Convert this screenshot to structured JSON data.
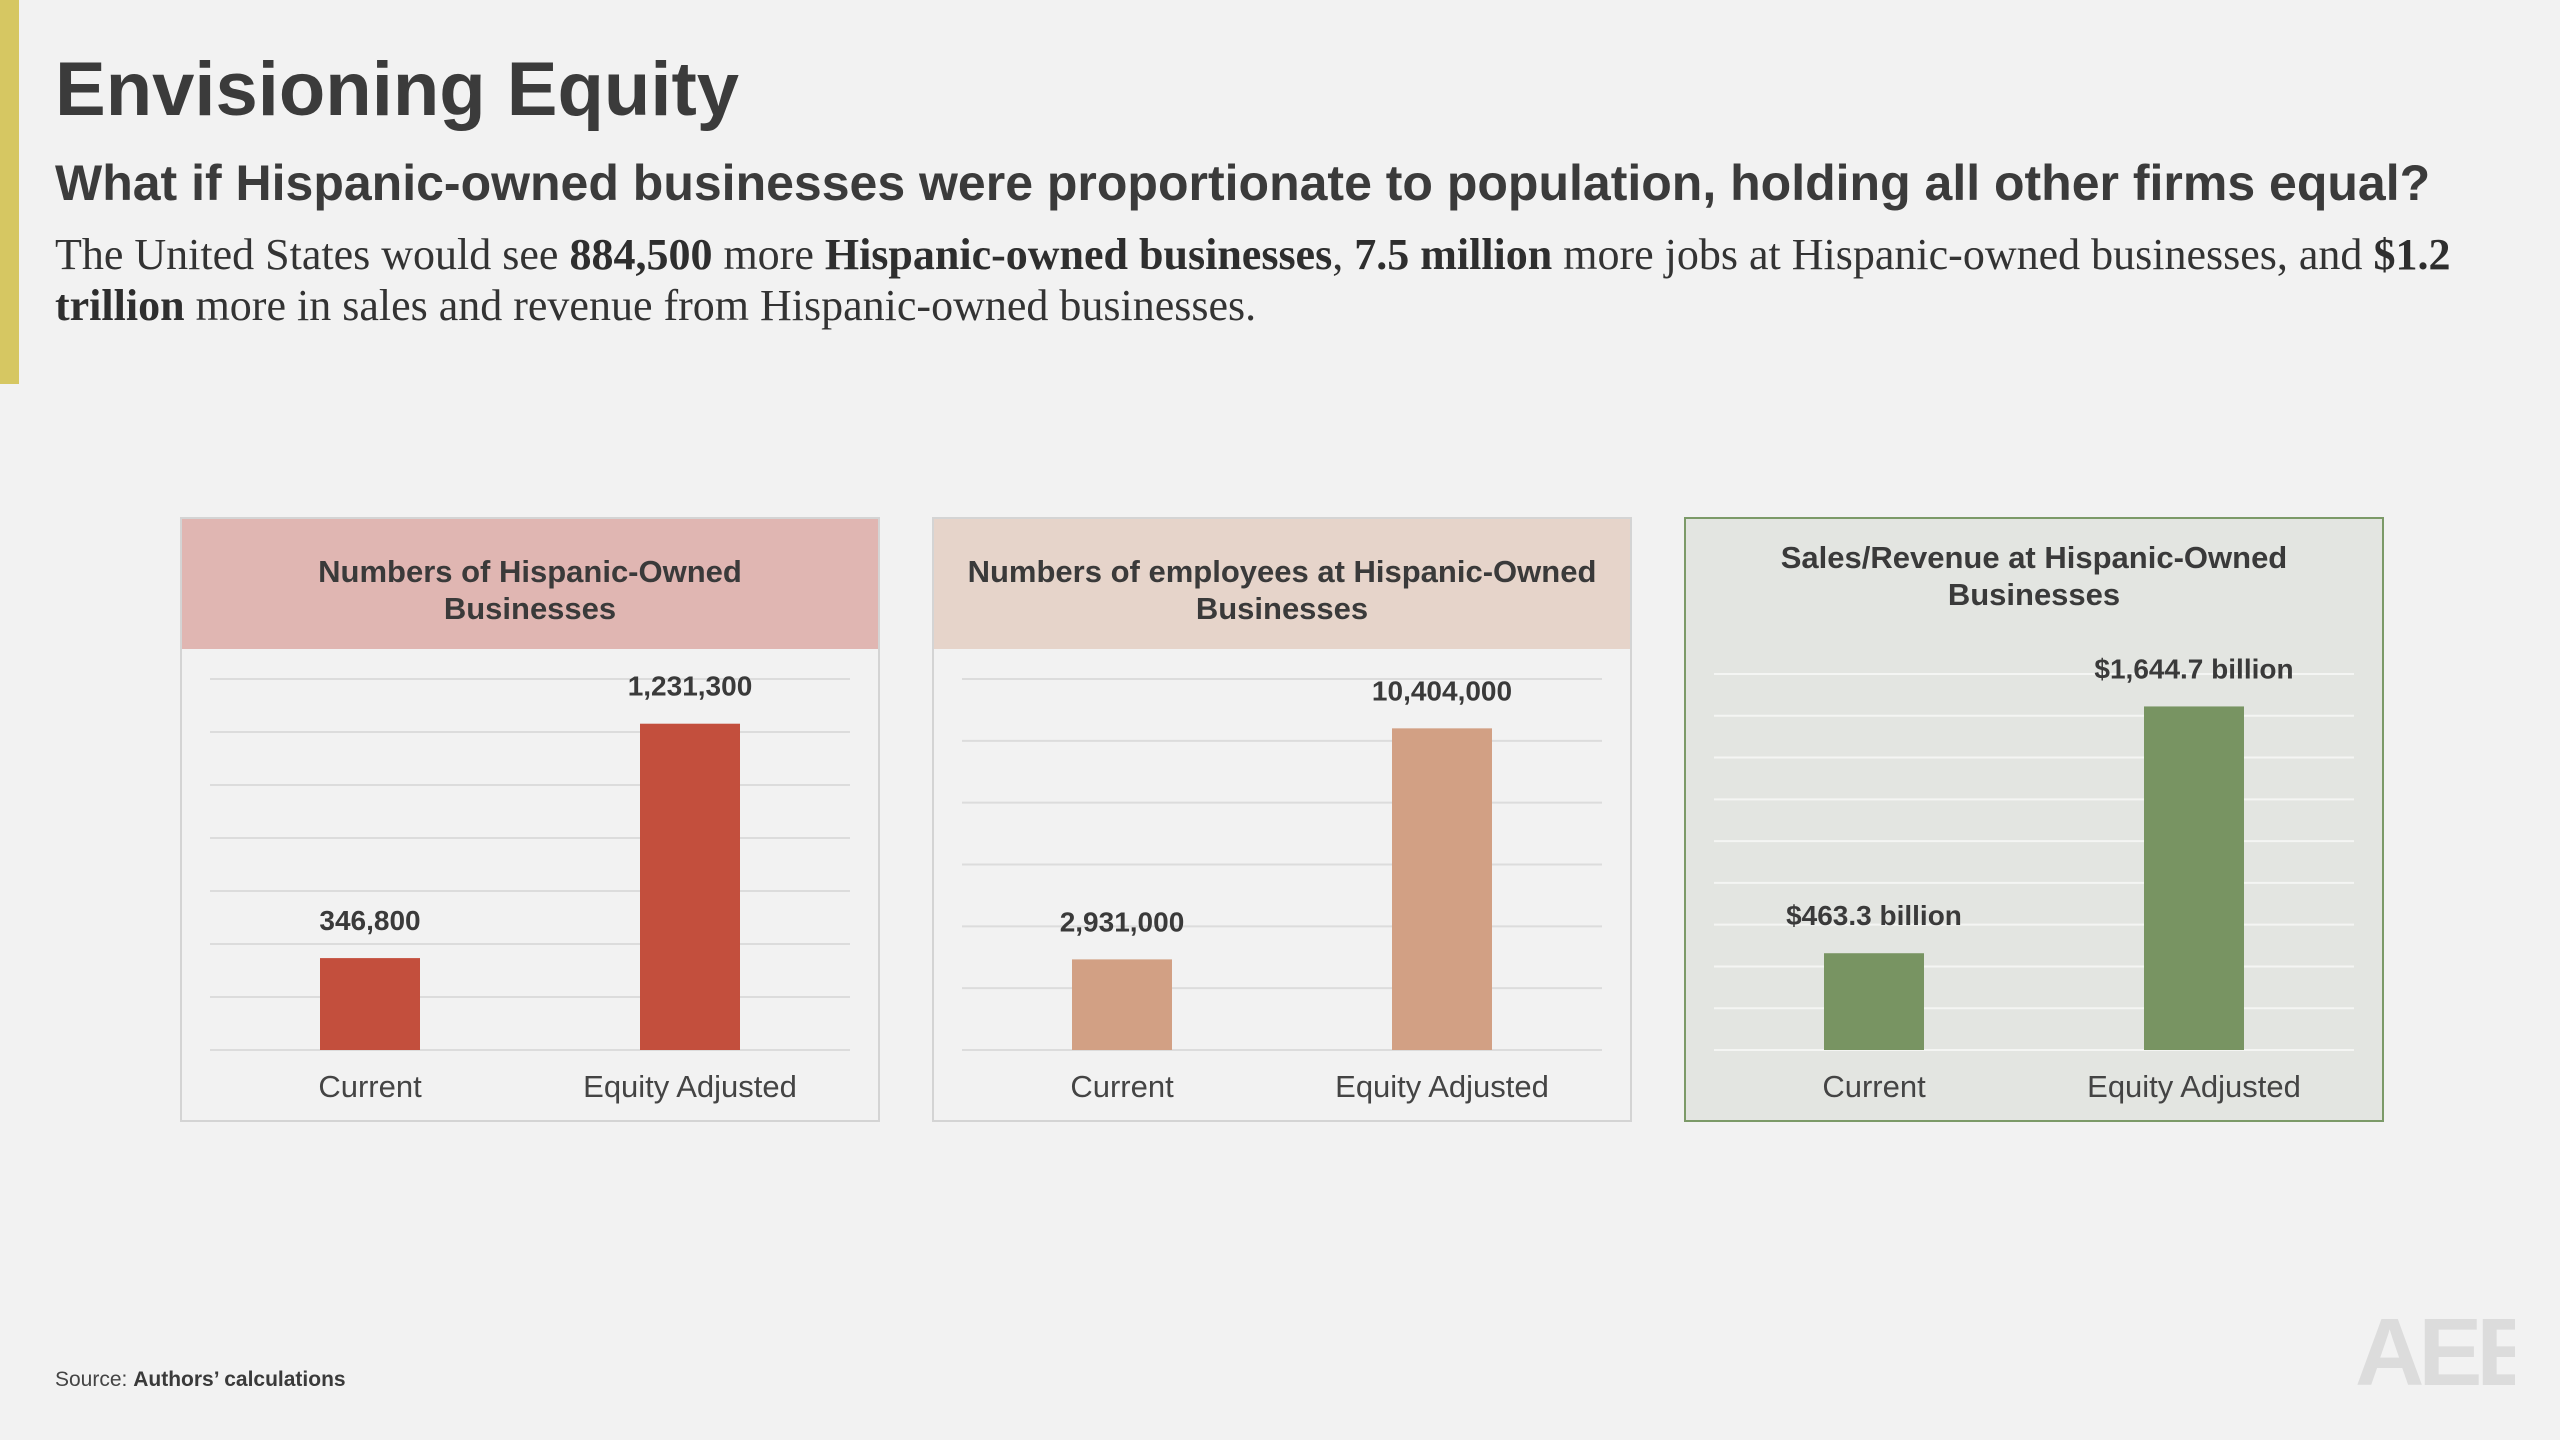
{
  "header": {
    "title": "Envisioning Equity",
    "subtitle": "What if Hispanic-owned businesses were proportionate to population, holding all other firms equal?",
    "intro": {
      "p1": "The United States would see ",
      "b1": "884,500",
      "p2": " more ",
      "b2": "Hispanic-owned businesses",
      "p3": ", ",
      "b3": "7.5 million",
      "p4": " more jobs at Hispanic-owned businesses, and ",
      "b4": "$1.2 trillion",
      "p5": " more in sales and revenue from Hispanic-owned businesses."
    }
  },
  "footer": {
    "source_label": "Source:",
    "source_value": "Authors’ calculations",
    "logo_text": "AEE"
  },
  "colors": {
    "accent": "#d6c762",
    "panel1_header": "#e0b6b2",
    "panel1_bar": "#c34f3d",
    "panel2_header": "#e6d4ca",
    "panel2_bar": "#d2a084",
    "panel3_bg": "#e3e5e1",
    "panel3_border": "#7c9a68",
    "panel3_bar": "#789462"
  },
  "chart_data": [
    {
      "type": "bar",
      "title": "Numbers of Hispanic-Owned Businesses",
      "categories": [
        "Current",
        "Equity Adjusted"
      ],
      "values": [
        346800,
        1231300
      ],
      "data_labels": [
        "346,800",
        "1,231,300"
      ],
      "ylim": [
        0,
        1400000
      ],
      "gridlines": 7,
      "grid": true
    },
    {
      "type": "bar",
      "title": "Numbers of employees at Hispanic-Owned Businesses",
      "categories": [
        "Current",
        "Equity Adjusted"
      ],
      "values": [
        2931000,
        10404000
      ],
      "data_labels": [
        "2,931,000",
        "10,404,000"
      ],
      "ylim": [
        0,
        12000000
      ],
      "gridlines": 6,
      "grid": true
    },
    {
      "type": "bar",
      "title": "Sales/Revenue at Hispanic-Owned Businesses",
      "categories": [
        "Current",
        "Equity Adjusted"
      ],
      "values": [
        463.3,
        1644.7
      ],
      "data_labels": [
        "$463.3 billion",
        "$1,644.7 billion"
      ],
      "ylim": [
        0,
        1800
      ],
      "gridlines": 9,
      "grid": true
    }
  ]
}
